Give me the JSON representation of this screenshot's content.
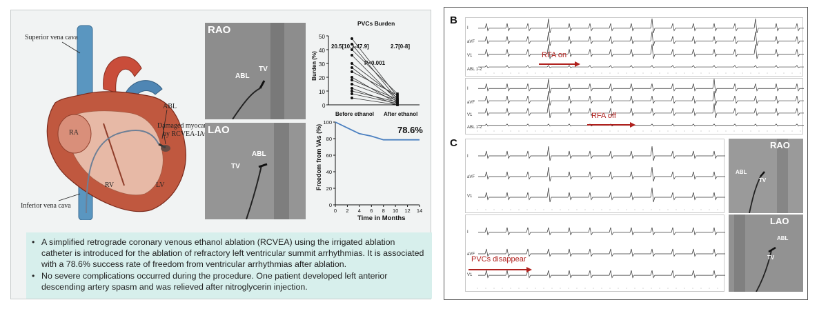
{
  "heart": {
    "labels": {
      "svc": "Superior vena cava",
      "ivc": "Inferior vena cava",
      "abl": "ABL",
      "damaged": "Damaged myocardium",
      "by": "by RCVEA-IAC",
      "ra": "RA",
      "rv": "RV",
      "lv": "LV"
    }
  },
  "fluoro_left": {
    "rao_title": "RAO",
    "rao_abl": "ABL",
    "rao_tv": "TV",
    "lao_title": "LAO",
    "lao_abl": "ABL",
    "lao_tv": "TV"
  },
  "pvc_chart": {
    "title": "PVCs Burden",
    "before_stat": "20.5[10.1-47.9]",
    "after_stat": "2.7[0-8]",
    "p_value": "P<0.001",
    "ylabel": "Burden (%)",
    "ytick_labels": [
      "50",
      "40",
      "30",
      "20",
      "10",
      "0"
    ],
    "xtick_labels": [
      "Before ethanol",
      "After ethanol"
    ]
  },
  "chart_data": [
    {
      "type": "scatter",
      "title": "PVCs Burden",
      "categories": [
        "Before ethanol",
        "After ethanol"
      ],
      "ylabel": "Burden (%)",
      "ylim": [
        0,
        50
      ],
      "pairs": [
        [
          48,
          6
        ],
        [
          44,
          4
        ],
        [
          40,
          8
        ],
        [
          36,
          3
        ],
        [
          30,
          5
        ],
        [
          27,
          2
        ],
        [
          24,
          7
        ],
        [
          20,
          1
        ],
        [
          18,
          4
        ],
        [
          15,
          3
        ],
        [
          12,
          0
        ],
        [
          10,
          2
        ],
        [
          8,
          1
        ],
        [
          5,
          0
        ]
      ],
      "annotations": [
        "20.5[10.1-47.9]",
        "2.7[0-8]",
        "P<0.001"
      ]
    },
    {
      "type": "line",
      "title": "",
      "xlabel": "Time in Months",
      "ylabel": "Freedom from VAs (%)",
      "xlim": [
        0,
        14
      ],
      "ylim": [
        0,
        100
      ],
      "x": [
        0,
        2,
        4,
        6,
        8,
        10,
        12,
        14
      ],
      "y": [
        100,
        93,
        86,
        83,
        78.6,
        78.6,
        78.6,
        78.6
      ],
      "annotation": "78.6%",
      "xtick_labels": [
        "0",
        "2",
        "4",
        "6",
        "8",
        "10",
        "12",
        "14"
      ],
      "ytick_labels": [
        "100",
        "80",
        "60",
        "40",
        "20",
        "0"
      ]
    }
  ],
  "survival": {
    "ylabel": "Freedom from VAs (%)",
    "xlabel": "Time in Months",
    "value_label": "78.6%",
    "xtick_labels": [
      "0",
      "2",
      "4",
      "6",
      "8",
      "10",
      "12",
      "14"
    ],
    "ytick_labels": [
      "100",
      "80",
      "60",
      "40",
      "20",
      "0"
    ]
  },
  "summary": {
    "bullet1": "A simplified retrograde coronary venous ethanol ablation (RCVEA) using the irrigated ablation catheter  is introduced for the ablation of refractory left ventricular summit arrhythmias. It is associated with a 78.6% success rate of freedom from ventricular arrhythmias after ablation.",
    "bullet2": "No severe complications occurred during the procedure. One patient developed left anterior descending artery spasm and was relieved after nitroglycerin injection."
  },
  "panel_b": {
    "letter": "B",
    "rfa_on": "RFA on",
    "rfa_off": "RFA off",
    "leads": [
      "I",
      "aVF",
      "V1",
      "ABL 1-2"
    ]
  },
  "panel_c": {
    "letter": "C",
    "pvcs_disappear": "PVCs disappear",
    "leads": [
      "I",
      "aVF",
      "V1"
    ],
    "rao_title": "RAO",
    "rao_abl": "ABL",
    "rao_tv": "TV",
    "lao_title": "LAO",
    "lao_abl": "ABL",
    "lao_tv": "TV"
  },
  "colors": {
    "vein_blue": "#5a96c0",
    "heart_red": "#c0583f",
    "arrow_red": "#b0201d",
    "summary_bg": "#d7efec",
    "survival_line": "#4a7fc0"
  }
}
